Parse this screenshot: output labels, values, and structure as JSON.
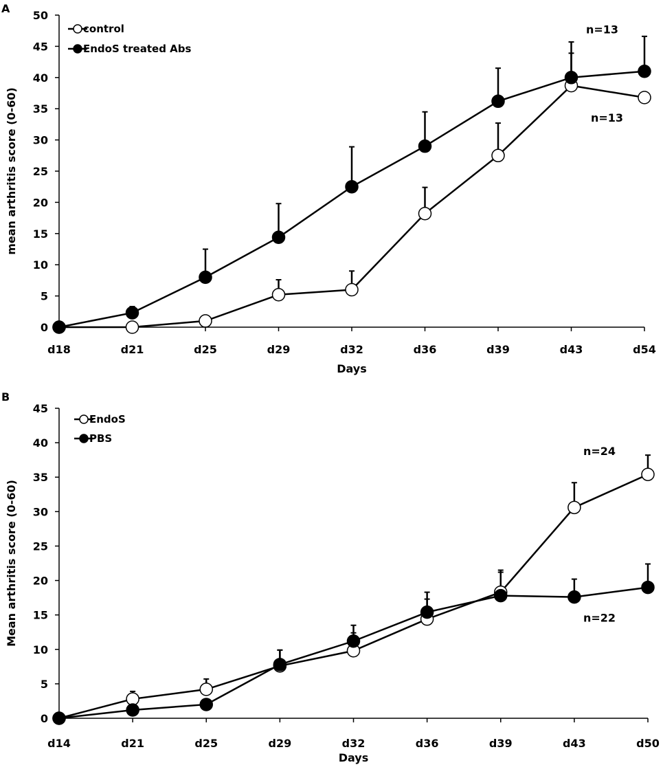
{
  "chart_data": [
    {
      "panel": "A",
      "type": "line",
      "categories": [
        "d18",
        "d21",
        "d25",
        "d29",
        "d32",
        "d36",
        "d39",
        "d43",
        "d54"
      ],
      "xlabel": "Days",
      "ylabel": "mean arthritis score (0-60)",
      "ylim": [
        0,
        50
      ],
      "yticks": [
        0,
        5,
        10,
        15,
        20,
        25,
        30,
        35,
        40,
        45,
        50
      ],
      "legend_position": "top-left",
      "series": [
        {
          "name": "control",
          "marker": "open-circle",
          "values": [
            0,
            0,
            1,
            5.2,
            6,
            18.2,
            27.5,
            38.7,
            36.8
          ],
          "errors": [
            0,
            0,
            0.8,
            2.4,
            3,
            4.2,
            5.2,
            5.2,
            0
          ]
        },
        {
          "name": "EndoS treated Abs",
          "marker": "filled-circle",
          "values": [
            0,
            2.3,
            8,
            14.4,
            22.5,
            29,
            36.2,
            40,
            41
          ],
          "errors": [
            0,
            1,
            4.5,
            5.4,
            6.4,
            5.5,
            5.3,
            5.7,
            5.6
          ]
        }
      ],
      "annotations": [
        {
          "text": "n=13",
          "series": "EndoS treated Abs"
        },
        {
          "text": "n=13",
          "series": "control"
        }
      ]
    },
    {
      "panel": "B",
      "type": "line",
      "categories": [
        "d14",
        "d21",
        "d25",
        "d29",
        "d32",
        "d36",
        "d39",
        "d43",
        "d50"
      ],
      "xlabel": "Days",
      "ylabel": "Mean arthritis score (0-60)",
      "ylim": [
        0,
        45
      ],
      "yticks": [
        0,
        5,
        10,
        15,
        20,
        25,
        30,
        35,
        40,
        45
      ],
      "legend_position": "top-left",
      "series": [
        {
          "name": "EndoS",
          "marker": "open-circle",
          "values": [
            0,
            2.8,
            4.2,
            7.6,
            9.8,
            14.4,
            18.3,
            30.6,
            35.4
          ],
          "errors": [
            0,
            1.1,
            1.5,
            2.3,
            2.6,
            2.9,
            3.2,
            3.6,
            2.8
          ]
        },
        {
          "name": "PBS",
          "marker": "filled-circle",
          "values": [
            0,
            1.2,
            2,
            7.8,
            11.2,
            15.4,
            17.8,
            17.6,
            19
          ],
          "errors": [
            0,
            0,
            0,
            2.1,
            2.3,
            2.9,
            3.4,
            2.6,
            3.4
          ]
        }
      ],
      "annotations": [
        {
          "text": "n=24",
          "series": "EndoS"
        },
        {
          "text": "n=22",
          "series": "PBS"
        }
      ]
    }
  ]
}
